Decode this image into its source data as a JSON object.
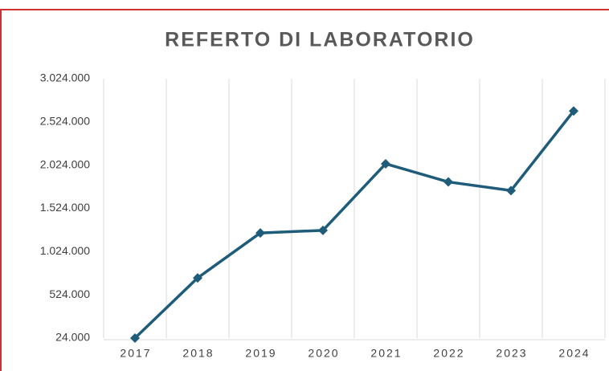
{
  "chart_data": {
    "type": "line",
    "title": "REFERTO DI LABORATORIO",
    "categories": [
      "2017",
      "2018",
      "2019",
      "2020",
      "2021",
      "2022",
      "2023",
      "2024"
    ],
    "series": [
      {
        "name": "Referto di laboratorio",
        "color": "#1e5c7a",
        "values": [
          24000,
          720000,
          1240000,
          1270000,
          2040000,
          1830000,
          1730000,
          2650000
        ]
      }
    ],
    "ylim": [
      24000,
      3024000
    ],
    "yticks": [
      {
        "value": 24000,
        "label": "24.000"
      },
      {
        "value": 524000,
        "label": "524.000"
      },
      {
        "value": 1024000,
        "label": "1.024.000"
      },
      {
        "value": 1524000,
        "label": "1.524.000"
      },
      {
        "value": 2024000,
        "label": "2.024.000"
      },
      {
        "value": 2524000,
        "label": "2.524.000"
      },
      {
        "value": 3024000,
        "label": "3.024.000"
      }
    ],
    "grid": "vertical"
  }
}
